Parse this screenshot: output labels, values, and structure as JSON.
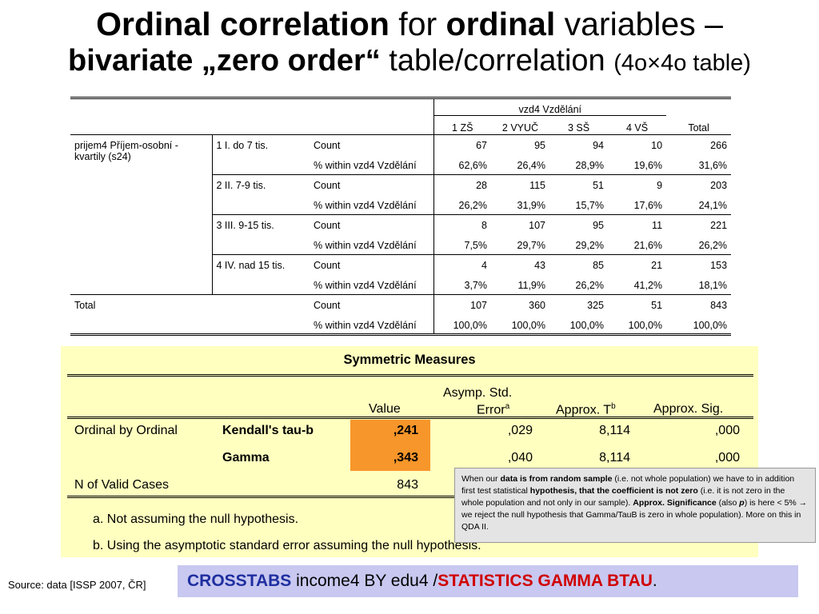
{
  "title": {
    "line1_bold_a": "Ordinal correlation",
    "line1_plain_a": " for ",
    "line1_bold_b": "ordinal",
    "line1_plain_b": " variables –",
    "line2_bold": "bivariate „zero order“",
    "line2_plain": " table/correlation ",
    "line2_small": "(4o×4o table)"
  },
  "crosstab": {
    "col_var": "vzd4 Vzdělání",
    "columns": [
      "1 ZŠ",
      "2 VYUČ",
      "3 SŠ",
      "4 VŠ",
      "Total"
    ],
    "row_var": "prijem4 Příjem-osobní - kvartily (s24)",
    "rows": [
      {
        "label": "1 I. do 7 tis.",
        "count": [
          "67",
          "95",
          "94",
          "10",
          "266"
        ],
        "pct": [
          "62,6%",
          "26,4%",
          "28,9%",
          "19,6%",
          "31,6%"
        ]
      },
      {
        "label": "2 II. 7-9 tis.",
        "count": [
          "28",
          "115",
          "51",
          "9",
          "203"
        ],
        "pct": [
          "26,2%",
          "31,9%",
          "15,7%",
          "17,6%",
          "24,1%"
        ]
      },
      {
        "label": "3 III. 9-15 tis.",
        "count": [
          "8",
          "107",
          "95",
          "11",
          "221"
        ],
        "pct": [
          "7,5%",
          "29,7%",
          "29,2%",
          "21,6%",
          "26,2%"
        ]
      },
      {
        "label": "4 IV. nad 15 tis.",
        "count": [
          "4",
          "43",
          "85",
          "21",
          "153"
        ],
        "pct": [
          "3,7%",
          "11,9%",
          "26,2%",
          "41,2%",
          "18,1%"
        ]
      }
    ],
    "total": {
      "label": "Total",
      "count": [
        "107",
        "360",
        "325",
        "51",
        "843"
      ],
      "pct": [
        "100,0%",
        "100,0%",
        "100,0%",
        "100,0%",
        "100,0%"
      ]
    },
    "count_label": "Count",
    "pct_label": "% within vzd4 Vzdělání"
  },
  "symmetric": {
    "title": "Symmetric Measures",
    "h_value": "Value",
    "h_err1": "Asymp. Std.",
    "h_err2": "Error",
    "h_err_sup": "a",
    "h_t": "Approx. T",
    "h_t_sup": "b",
    "h_sig": "Approx. Sig.",
    "row1_group": "Ordinal by Ordinal",
    "row1_name": "Kendall's tau-b",
    "row1_value": ",241",
    "row1_err": ",029",
    "row1_t": "8,114",
    "row1_sig": ",000",
    "row2_name": "Gamma",
    "row2_value": ",343",
    "row2_err": ",040",
    "row2_t": "8,114",
    "row2_sig": ",000",
    "row3_group": "N of Valid Cases",
    "row3_value": "843",
    "foot_a": "a. Not assuming the null hypothesis.",
    "foot_b": "b. Using the asymptotic standard error assuming the null hypothesis."
  },
  "note": {
    "t1": "When our ",
    "b1": "data is from random sample",
    "t2": " (i.e. not whole population) we have to in addition first test statistical ",
    "b2": "hypothesis, that the coefficient is not zero",
    "t3": " (i.e. it is not zero in the whole population and not only in our sample). ",
    "b3": "Approx. Significance",
    "t4": "  (also ",
    "b4": "p",
    "t5": ") is here < 5% → we reject the null hypothesis that Gamma/TauB is zero in whole population). More on this in QDA II."
  },
  "source": "Source: data [ISSP 2007, ČR]",
  "command": {
    "part1": "CROSSTABS",
    "part2": " income4 BY edu4 /",
    "part3": "STATISTICS GAMMA BTAU",
    "part4": "."
  },
  "colors": {
    "orange": "#f7962a",
    "yellow_panel": "#ffffc0",
    "cmd_bg": "#c8c8f0",
    "blue": "#1f2fa0",
    "red": "#d00000"
  }
}
